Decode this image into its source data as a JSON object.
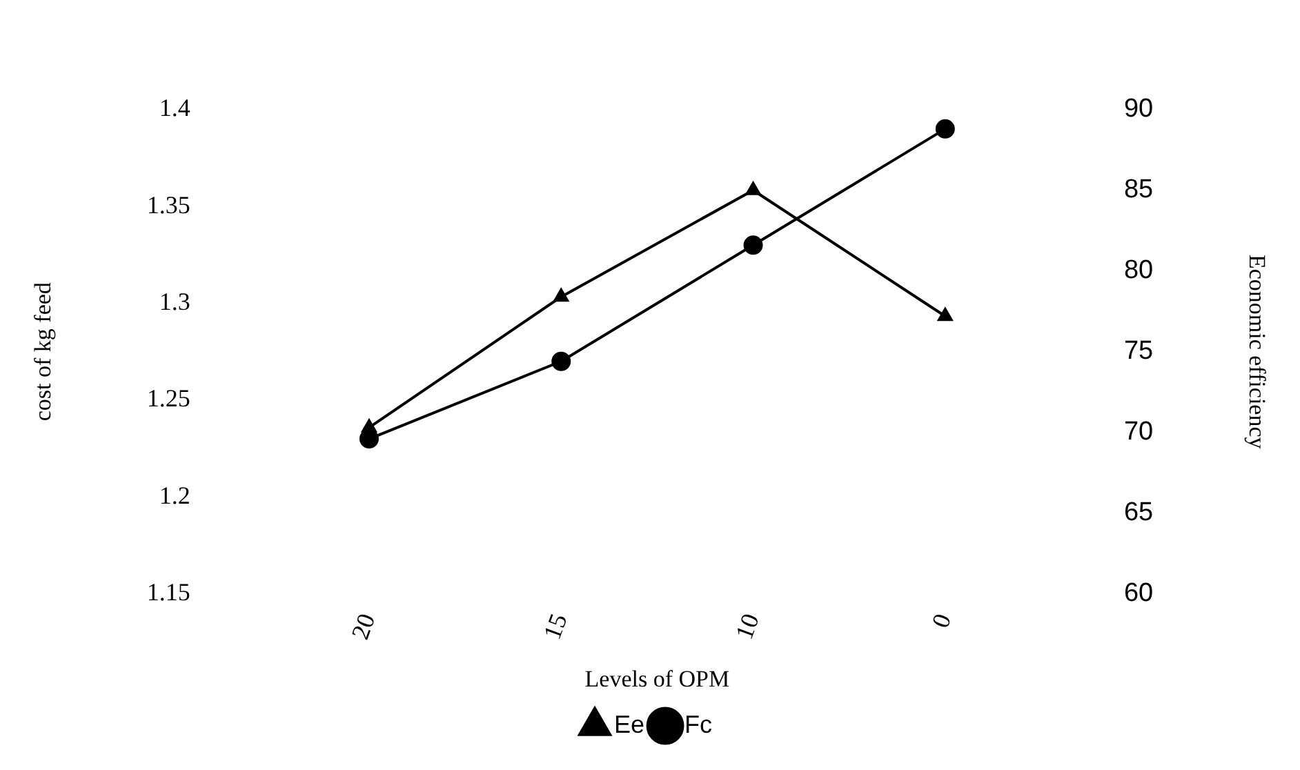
{
  "chart_data": {
    "type": "line",
    "xlabel": "Levels of OPM",
    "ylabel": "cost of kg feed",
    "y2label": "Economic efficiency",
    "categories": [
      "20",
      "15",
      "10",
      "0"
    ],
    "series": [
      {
        "name": "Ee",
        "color": "#000000",
        "values": [
          70.3,
          78.4,
          85,
          77.2
        ],
        "axis": "y2",
        "marker": "triangle"
      },
      {
        "name": "Fc",
        "color": "#000000",
        "values": [
          1.23,
          1.27,
          1.33,
          1.39
        ],
        "marker": "circle"
      }
    ],
    "ylim": [
      1.15,
      1.4
    ],
    "yticks": [
      1.15,
      1.2,
      1.25,
      1.3,
      1.35,
      1.4
    ],
    "y2lim": [
      60,
      90
    ],
    "y2ticks": [
      60,
      65,
      70,
      75,
      80,
      85,
      90
    ],
    "grid": false,
    "legend": "bottom"
  }
}
